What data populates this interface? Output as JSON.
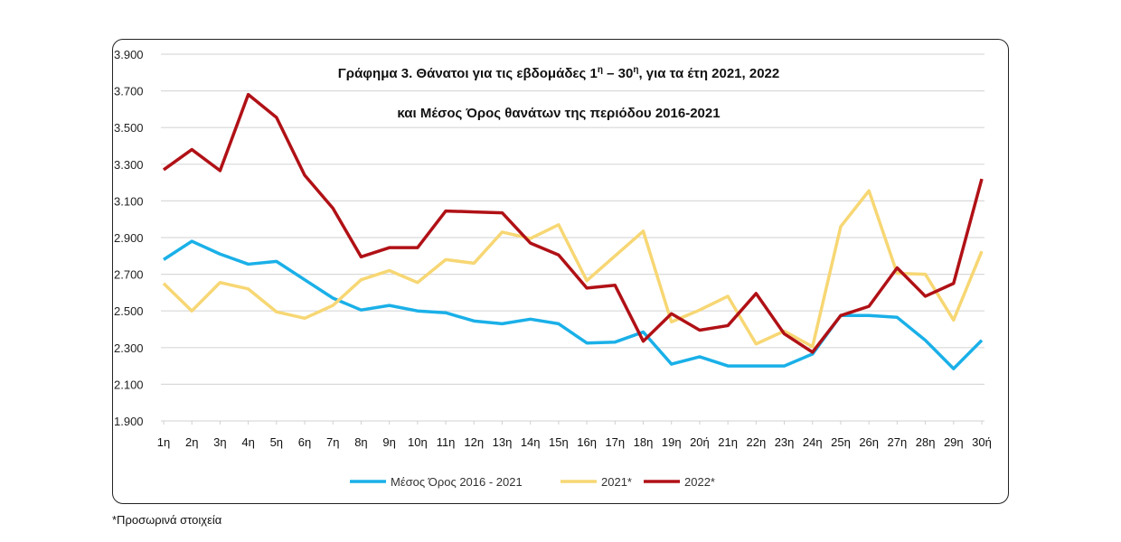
{
  "chart_data": {
    "type": "line",
    "title_line1_pre": "Γράφημα 3. Θάνατοι για τις εβδομάδες 1",
    "title_sup1": "η",
    "title_mid": " – 30",
    "title_sup2": "η",
    "title_line1_post": ", για τα έτη 2021, 2022",
    "title_line2": "και Μέσος Όρος θανάτων της περιόδου 2016-2021",
    "ylim": [
      1900,
      3900
    ],
    "yticks": [
      "1.900",
      "2.100",
      "2.300",
      "2.500",
      "2.700",
      "2.900",
      "3.100",
      "3.300",
      "3.500",
      "3.700",
      "3.900"
    ],
    "ytick_values": [
      1900,
      2100,
      2300,
      2500,
      2700,
      2900,
      3100,
      3300,
      3500,
      3700,
      3900
    ],
    "grid": true,
    "legend_position": "bottom",
    "categories": [
      "1η",
      "2η",
      "3η",
      "4η",
      "5η",
      "6η",
      "7η",
      "8η",
      "9η",
      "10η",
      "11η",
      "12η",
      "13η",
      "14η",
      "15η",
      "16η",
      "17η",
      "18η",
      "19η",
      "20ή",
      "21η",
      "22η",
      "23η",
      "24η",
      "25η",
      "26η",
      "27η",
      "28η",
      "29η",
      "30ή"
    ],
    "series": [
      {
        "name": "Μέσος Όρος 2016 - 2021",
        "color": "#1ab0e8",
        "values": [
          2780,
          2880,
          2810,
          2755,
          2770,
          2670,
          2570,
          2505,
          2530,
          2500,
          2490,
          2445,
          2430,
          2455,
          2430,
          2325,
          2330,
          2385,
          2210,
          2250,
          2200,
          2200,
          2200,
          2265,
          2475,
          2475,
          2465,
          2340,
          2185,
          2340
        ]
      },
      {
        "name": "2021*",
        "color": "#f7d774",
        "values": [
          2650,
          2500,
          2655,
          2620,
          2495,
          2460,
          2530,
          2670,
          2720,
          2655,
          2780,
          2760,
          2930,
          2895,
          2970,
          2665,
          2800,
          2935,
          2440,
          2505,
          2580,
          2320,
          2390,
          2305,
          2960,
          3155,
          2705,
          2700,
          2450,
          2825
        ]
      },
      {
        "name": "2022*",
        "color": "#b01116",
        "values": [
          3270,
          3380,
          3265,
          3680,
          3555,
          3240,
          3060,
          2795,
          2845,
          2845,
          3045,
          3040,
          3035,
          2870,
          2805,
          2625,
          2640,
          2335,
          2485,
          2395,
          2420,
          2595,
          2375,
          2275,
          2475,
          2525,
          2735,
          2580,
          2650,
          3220
        ]
      }
    ]
  },
  "footnote": "*Προσωρινά στοιχεία"
}
